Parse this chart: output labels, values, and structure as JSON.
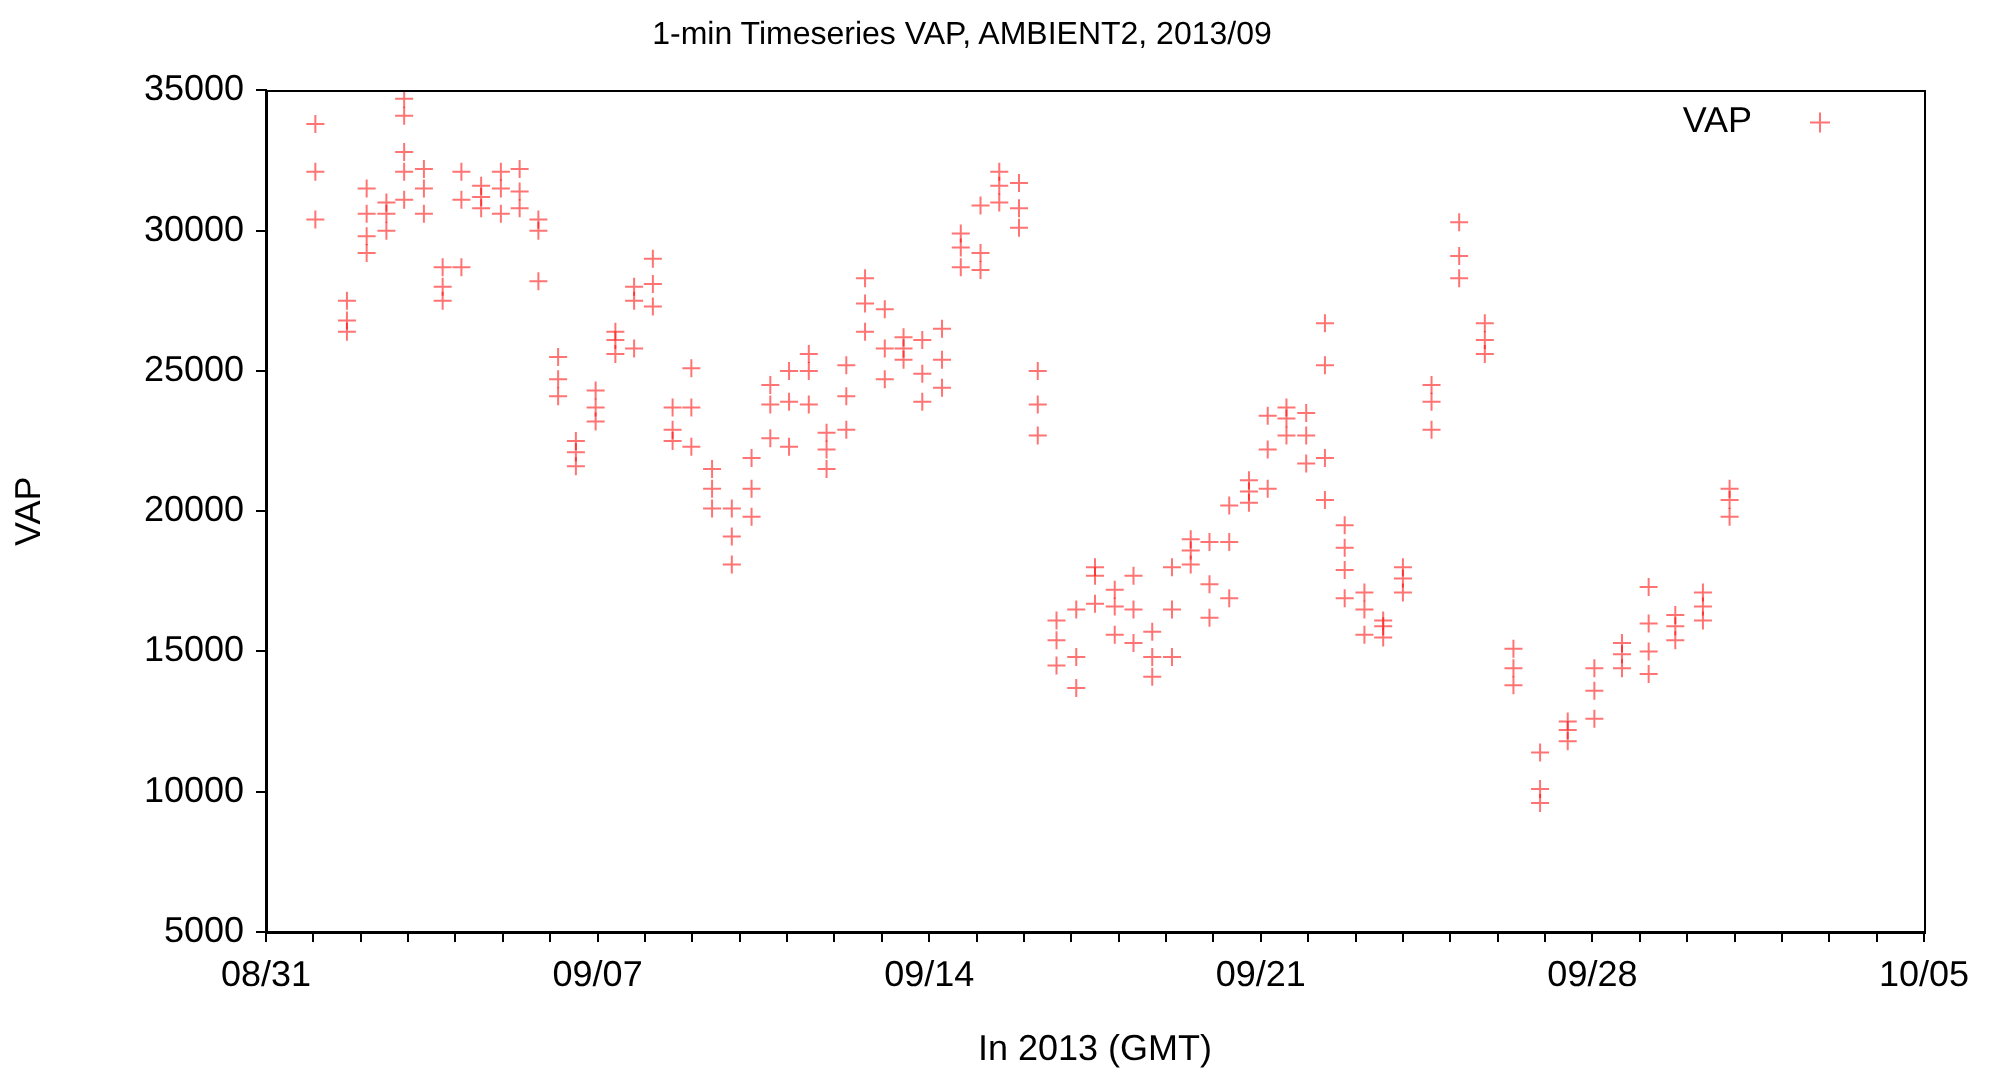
{
  "chart_data": {
    "type": "scatter",
    "title": "1-min Timeseries VAP, AMBIENT2, 2013/09",
    "xlabel": "In 2013 (GMT)",
    "ylabel": "VAP",
    "series": [
      {
        "name": "VAP",
        "color": "#ff0000",
        "x": [
          "2013-09-01T01:00",
          "2013-09-01T01:00",
          "2013-09-01T01:00",
          "2013-09-01T17:00",
          "2013-09-01T17:00",
          "2013-09-01T17:00",
          "2013-09-02T03:00",
          "2013-09-02T03:00",
          "2013-09-02T03:00",
          "2013-09-02T03:00",
          "2013-09-02T13:00",
          "2013-09-02T13:00",
          "2013-09-02T13:00",
          "2013-09-02T22:00",
          "2013-09-02T22:00",
          "2013-09-02T22:00",
          "2013-09-02T22:00",
          "2013-09-02T22:00",
          "2013-09-03T08:00",
          "2013-09-03T08:00",
          "2013-09-03T08:00",
          "2013-09-03T17:30",
          "2013-09-03T17:30",
          "2013-09-03T17:30",
          "2013-09-04T03:00",
          "2013-09-04T03:00",
          "2013-09-04T03:00",
          "2013-09-04T13:00",
          "2013-09-04T13:00",
          "2013-09-04T13:00",
          "2013-09-04T23:00",
          "2013-09-04T23:00",
          "2013-09-04T23:00",
          "2013-09-05T08:30",
          "2013-09-05T08:30",
          "2013-09-05T08:30",
          "2013-09-05T18:00",
          "2013-09-05T18:00",
          "2013-09-05T18:00",
          "2013-09-06T04:00",
          "2013-09-06T04:00",
          "2013-09-06T04:00",
          "2013-09-06T13:00",
          "2013-09-06T13:00",
          "2013-09-06T13:00",
          "2013-09-06T23:00",
          "2013-09-06T23:00",
          "2013-09-06T23:00",
          "2013-09-07T09:00",
          "2013-09-07T09:00",
          "2013-09-07T09:00",
          "2013-09-07T18:30",
          "2013-09-07T18:30",
          "2013-09-07T18:30",
          "2013-09-08T04:00",
          "2013-09-08T04:00",
          "2013-09-08T04:00",
          "2013-09-08T14:00",
          "2013-09-08T14:00",
          "2013-09-08T14:00",
          "2013-09-08T23:30",
          "2013-09-08T23:30",
          "2013-09-08T23:30",
          "2013-09-09T10:00",
          "2013-09-09T10:00",
          "2013-09-09T10:00",
          "2013-09-09T20:00",
          "2013-09-09T20:00",
          "2013-09-09T20:00",
          "2013-09-10T06:00",
          "2013-09-10T06:00",
          "2013-09-10T06:00",
          "2013-09-10T15:30",
          "2013-09-10T15:30",
          "2013-09-10T15:30",
          "2013-09-11T01:00",
          "2013-09-11T01:00",
          "2013-09-11T01:00",
          "2013-09-11T11:00",
          "2013-09-11T11:00",
          "2013-09-11T11:00",
          "2013-09-11T20:00",
          "2013-09-11T20:00",
          "2013-09-11T20:00",
          "2013-09-12T06:00",
          "2013-09-12T06:00",
          "2013-09-12T06:00",
          "2013-09-12T15:30",
          "2013-09-12T15:30",
          "2013-09-12T15:30",
          "2013-09-13T01:30",
          "2013-09-13T01:30",
          "2013-09-13T01:30",
          "2013-09-13T11:00",
          "2013-09-13T11:00",
          "2013-09-13T11:00",
          "2013-09-13T20:30",
          "2013-09-13T20:30",
          "2013-09-13T20:30",
          "2013-09-14T06:30",
          "2013-09-14T06:30",
          "2013-09-14T06:30",
          "2013-09-14T16:00",
          "2013-09-14T16:00",
          "2013-09-14T16:00",
          "2013-09-15T02:00",
          "2013-09-15T02:00",
          "2013-09-15T02:00",
          "2013-09-15T11:30",
          "2013-09-15T11:30",
          "2013-09-15T11:30",
          "2013-09-15T21:30",
          "2013-09-15T21:30",
          "2013-09-15T21:30",
          "2013-09-16T07:00",
          "2013-09-16T07:00",
          "2013-09-16T07:00",
          "2013-09-16T16:30",
          "2013-09-16T16:30",
          "2013-09-16T16:30",
          "2013-09-17T02:30",
          "2013-09-17T02:30",
          "2013-09-17T02:30",
          "2013-09-17T12:00",
          "2013-09-17T12:00",
          "2013-09-17T12:00",
          "2013-09-17T22:00",
          "2013-09-17T22:00",
          "2013-09-17T22:00",
          "2013-09-18T07:30",
          "2013-09-18T07:30",
          "2013-09-18T07:30",
          "2013-09-18T17:00",
          "2013-09-18T17:00",
          "2013-09-18T17:00",
          "2013-09-19T03:00",
          "2013-09-19T03:00",
          "2013-09-19T03:00",
          "2013-09-19T12:30",
          "2013-09-19T12:30",
          "2013-09-19T12:30",
          "2013-09-19T22:00",
          "2013-09-19T22:00",
          "2013-09-19T22:00",
          "2013-09-20T08:00",
          "2013-09-20T08:00",
          "2013-09-20T08:00",
          "2013-09-20T18:00",
          "2013-09-20T18:00",
          "2013-09-20T18:00",
          "2013-09-21T03:30",
          "2013-09-21T03:30",
          "2013-09-21T03:30",
          "2013-09-21T13:00",
          "2013-09-21T13:00",
          "2013-09-21T13:00",
          "2013-09-21T23:00",
          "2013-09-21T23:00",
          "2013-09-21T23:00",
          "2013-09-22T08:30",
          "2013-09-22T08:30",
          "2013-09-22T08:30",
          "2013-09-22T08:30",
          "2013-09-22T18:30",
          "2013-09-22T18:30",
          "2013-09-22T18:30",
          "2013-09-22T18:30",
          "2013-09-23T04:30",
          "2013-09-23T04:30",
          "2013-09-23T04:30",
          "2013-09-23T14:00",
          "2013-09-23T14:00",
          "2013-09-23T14:00",
          "2013-09-24T00:00",
          "2013-09-24T00:00",
          "2013-09-24T00:00",
          "2013-09-24T14:30",
          "2013-09-24T14:30",
          "2013-09-24T14:30",
          "2013-09-25T04:30",
          "2013-09-25T04:30",
          "2013-09-25T04:30",
          "2013-09-25T17:30",
          "2013-09-25T17:30",
          "2013-09-25T17:30",
          "2013-09-26T08:00",
          "2013-09-26T08:00",
          "2013-09-26T08:00",
          "2013-09-26T21:30",
          "2013-09-26T21:30",
          "2013-09-26T21:30",
          "2013-09-27T11:30",
          "2013-09-27T11:30",
          "2013-09-27T11:30",
          "2013-09-28T01:00",
          "2013-09-28T01:00",
          "2013-09-28T01:00",
          "2013-09-28T15:00",
          "2013-09-28T15:00",
          "2013-09-28T15:00",
          "2013-09-29T04:30",
          "2013-09-29T04:30",
          "2013-09-29T04:30",
          "2013-09-29T04:30",
          "2013-09-29T18:00",
          "2013-09-29T18:00",
          "2013-09-29T18:00",
          "2013-09-30T08:00",
          "2013-09-30T08:00",
          "2013-09-30T08:00",
          "2013-09-30T21:30",
          "2013-09-30T21:30",
          "2013-09-30T21:30"
        ],
        "values": [
          33800,
          32100,
          30400,
          27500,
          26800,
          26400,
          31500,
          30600,
          29800,
          29200,
          31000,
          30600,
          30000,
          34700,
          34100,
          32800,
          32100,
          31100,
          32200,
          31500,
          30600,
          28700,
          28000,
          27500,
          32100,
          31100,
          28700,
          31600,
          31200,
          30800,
          32100,
          31500,
          30600,
          32200,
          31400,
          30800,
          30400,
          30000,
          28200,
          25500,
          24700,
          24100,
          22500,
          22100,
          21600,
          24300,
          23700,
          23200,
          26400,
          26100,
          25600,
          28000,
          27500,
          25800,
          29000,
          28100,
          27300,
          23700,
          22900,
          22500,
          25100,
          23700,
          22300,
          21500,
          20800,
          20100,
          20100,
          19100,
          18100,
          21900,
          20800,
          19800,
          24500,
          23800,
          22600,
          25000,
          23900,
          22300,
          25600,
          25000,
          23800,
          22800,
          22200,
          21500,
          25200,
          24100,
          22900,
          28300,
          27400,
          26400,
          27200,
          25800,
          24700,
          26200,
          25800,
          25400,
          26100,
          24900,
          23900,
          26500,
          25400,
          24400,
          29900,
          29400,
          28700,
          30900,
          29200,
          28600,
          32100,
          31600,
          31000,
          31700,
          30800,
          30100,
          25000,
          23800,
          22700,
          16100,
          15400,
          14500,
          16500,
          14800,
          13700,
          18000,
          17700,
          16700,
          17200,
          16600,
          15600,
          17700,
          16500,
          15300,
          15700,
          14800,
          14100,
          18000,
          16500,
          14800,
          19000,
          18600,
          18100,
          18900,
          17400,
          16200,
          20200,
          18900,
          16900,
          21100,
          20700,
          20300,
          23400,
          22200,
          20800,
          23700,
          23300,
          22700,
          23500,
          22700,
          21700,
          26700,
          25200,
          21900,
          20400,
          19500,
          18700,
          17900,
          16900,
          17100,
          16500,
          15600,
          16100,
          15900,
          15500,
          18000,
          17600,
          17100,
          24500,
          23900,
          22900,
          30300,
          29100,
          28300,
          26700,
          26100,
          25600,
          15100,
          14400,
          13800,
          11400,
          10100,
          9600,
          12500,
          12200,
          11800,
          14400,
          13600,
          12600,
          15300,
          14900,
          14400,
          17300,
          16000,
          15000,
          14200,
          16300,
          15900,
          15400,
          17100,
          16600,
          16100,
          20800,
          20400,
          19800
        ]
      }
    ],
    "marker": "cross",
    "xlim": [
      "2013-08-31",
      "2013-10-05"
    ],
    "xticks": [
      {
        "value": "2013-08-31",
        "label": "08/31"
      },
      {
        "value": "2013-09-01",
        "label": null
      },
      {
        "value": "2013-09-02",
        "label": null
      },
      {
        "value": "2013-09-03",
        "label": null
      },
      {
        "value": "2013-09-04",
        "label": null
      },
      {
        "value": "2013-09-05",
        "label": null
      },
      {
        "value": "2013-09-06",
        "label": null
      },
      {
        "value": "2013-09-07",
        "label": "09/07"
      },
      {
        "value": "2013-09-08",
        "label": null
      },
      {
        "value": "2013-09-09",
        "label": null
      },
      {
        "value": "2013-09-10",
        "label": null
      },
      {
        "value": "2013-09-11",
        "label": null
      },
      {
        "value": "2013-09-12",
        "label": null
      },
      {
        "value": "2013-09-13",
        "label": null
      },
      {
        "value": "2013-09-14",
        "label": "09/14"
      },
      {
        "value": "2013-09-15",
        "label": null
      },
      {
        "value": "2013-09-16",
        "label": null
      },
      {
        "value": "2013-09-17",
        "label": null
      },
      {
        "value": "2013-09-18",
        "label": null
      },
      {
        "value": "2013-09-19",
        "label": null
      },
      {
        "value": "2013-09-20",
        "label": null
      },
      {
        "value": "2013-09-21",
        "label": "09/21"
      },
      {
        "value": "2013-09-22",
        "label": null
      },
      {
        "value": "2013-09-23",
        "label": null
      },
      {
        "value": "2013-09-24",
        "label": null
      },
      {
        "value": "2013-09-25",
        "label": null
      },
      {
        "value": "2013-09-26",
        "label": null
      },
      {
        "value": "2013-09-27",
        "label": null
      },
      {
        "value": "2013-09-28",
        "label": "09/28"
      },
      {
        "value": "2013-09-29",
        "label": null
      },
      {
        "value": "2013-09-30",
        "label": null
      },
      {
        "value": "2013-10-01",
        "label": null
      },
      {
        "value": "2013-10-02",
        "label": null
      },
      {
        "value": "2013-10-03",
        "label": null
      },
      {
        "value": "2013-10-04",
        "label": null
      },
      {
        "value": "2013-10-05",
        "label": "10/05"
      }
    ],
    "ylim": [
      5000,
      35000
    ],
    "yticks": [
      5000,
      10000,
      15000,
      20000,
      25000,
      30000,
      35000
    ],
    "grid": false,
    "legend": "top right"
  }
}
